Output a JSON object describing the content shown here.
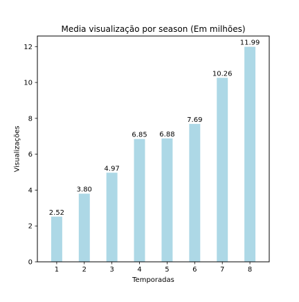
{
  "chart_data": {
    "type": "bar",
    "title": "Media visualização por season (Em milhões)",
    "xlabel": "Temporadas",
    "ylabel": "Visualizações",
    "categories": [
      "1",
      "2",
      "3",
      "4",
      "5",
      "6",
      "7",
      "8"
    ],
    "values": [
      2.52,
      3.8,
      4.97,
      6.85,
      6.88,
      7.69,
      10.26,
      11.99
    ],
    "value_labels": [
      "2.52",
      "3.80",
      "4.97",
      "6.85",
      "6.88",
      "7.69",
      "10.26",
      "11.99"
    ],
    "ylim": [
      0,
      12.59
    ],
    "yticks": [
      0,
      2,
      4,
      6,
      8,
      10,
      12
    ],
    "grid": false,
    "bar_color": "#add8e6"
  }
}
